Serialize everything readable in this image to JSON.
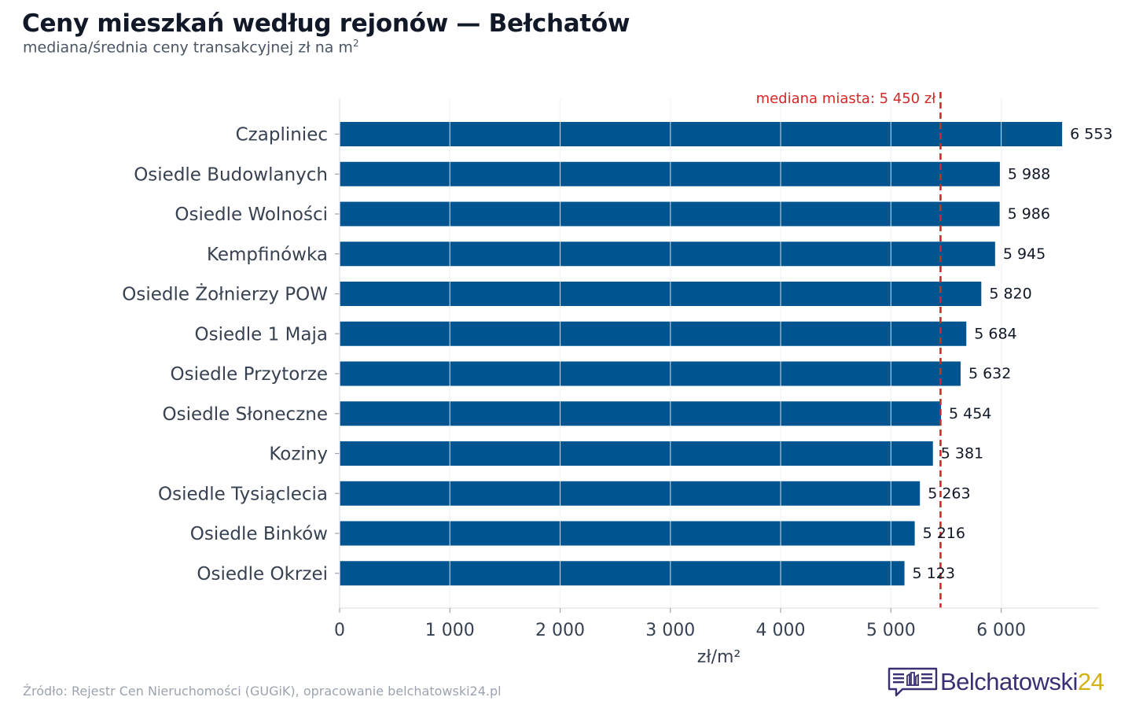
{
  "header": {
    "title": "Ceny mieszkań według rejonów — Bełchatów",
    "subtitle": "mediana/średnia ceny transakcyjnej zł na m",
    "subtitle_sup": "2"
  },
  "chart_data": {
    "type": "bar",
    "orientation": "horizontal",
    "categories": [
      "Czapliniec",
      "Osiedle Budowlanych",
      "Osiedle Wolności",
      "Kempfinówka",
      "Osiedle Żołnierzy POW",
      "Osiedle 1 Maja",
      "Osiedle Przytorze",
      "Osiedle Słoneczne",
      "Koziny",
      "Osiedle Tysiąclecia",
      "Osiedle Binków",
      "Osiedle Okrzei"
    ],
    "values": [
      6553,
      5988,
      5986,
      5945,
      5820,
      5684,
      5632,
      5454,
      5381,
      5263,
      5216,
      5123
    ],
    "value_labels": [
      "6 553",
      "5 988",
      "5 986",
      "5 945",
      "5 820",
      "5 684",
      "5 632",
      "5 454",
      "5 381",
      "5 263",
      "5 216",
      "5 123"
    ],
    "xlabel": "zł/m²",
    "ylabel": "",
    "xlim": [
      0,
      6880
    ],
    "x_ticks": [
      0,
      1000,
      2000,
      3000,
      4000,
      5000,
      6000
    ],
    "x_tick_labels": [
      "0",
      "1 000",
      "2 000",
      "3 000",
      "4 000",
      "5 000",
      "6 000"
    ],
    "grid": "vertical",
    "reference_line": {
      "value": 5450,
      "label": "mediana miasta: 5 450 zł",
      "style": "dashed"
    },
    "colors": {
      "bar": "#00548f",
      "reference": "#d62728",
      "grid": "#e5e7eb"
    }
  },
  "footer": {
    "source": "Źródło: Rejestr Cen Nieruchomości (GUGiK), opracowanie belchatowski24.pl",
    "logo_main": "Belchatowski",
    "logo_accent": "24",
    "logo_icon": "newspaper-speech-bubble-icon",
    "colors": {
      "logo_main": "#3b2f73",
      "logo_accent": "#d4b012"
    }
  }
}
